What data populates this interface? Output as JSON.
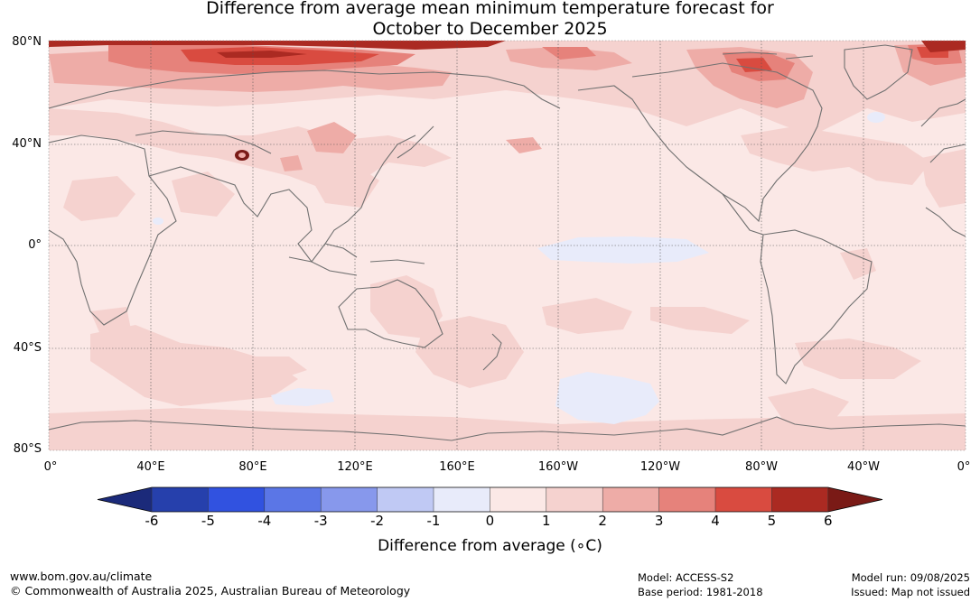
{
  "title_line1": "Difference from average mean minimum temperature forecast for",
  "title_line2": "October to December 2025",
  "lat_labels": [
    "80°N",
    "40°N",
    "0°",
    "40°S",
    "80°S"
  ],
  "lon_labels": [
    "0°",
    "40°E",
    "80°E",
    "120°E",
    "160°E",
    "160°W",
    "120°W",
    "80°W",
    "40°W",
    "0°"
  ],
  "colorbar": {
    "label": "Difference from average (∘C)",
    "ticks": [
      "-6",
      "-5",
      "-4",
      "-3",
      "-2",
      "-1",
      "0",
      "1",
      "2",
      "3",
      "4",
      "5",
      "6"
    ],
    "under_color": "#1b2a7a",
    "over_color": "#7a1a16",
    "colors": [
      "#2640ac",
      "#3152e0",
      "#5b76e6",
      "#8798ec",
      "#c0c9f4",
      "#e8ebfa",
      "#fbe8e6",
      "#f5d2cf",
      "#eeaca7",
      "#e6827b",
      "#d94b40",
      "#ab2a22"
    ]
  },
  "map_colors": {
    "ocean_base": "#fbe8e6",
    "land_outline": "#707070",
    "anomaly_0_1": "#fbe8e6",
    "anomaly_1_2": "#f5d2cf",
    "anomaly_2_3": "#eeaca7",
    "anomaly_3_4": "#e6827b",
    "anomaly_4_5": "#d94b40",
    "anomaly_5_6": "#ab2a22",
    "anomaly_gt6": "#7a1a16",
    "anomaly_m1_0": "#e8ebfa"
  },
  "footer": {
    "url": "www.bom.gov.au/climate",
    "copyright": "© Commonwealth of Australia 2025, Australian Bureau of Meteorology",
    "model": "Model: ACCESS-S2",
    "base_period": "Base period: 1981-2018",
    "model_run": "Model run: 09/08/2025",
    "issued": "Issued: Map not issued"
  }
}
